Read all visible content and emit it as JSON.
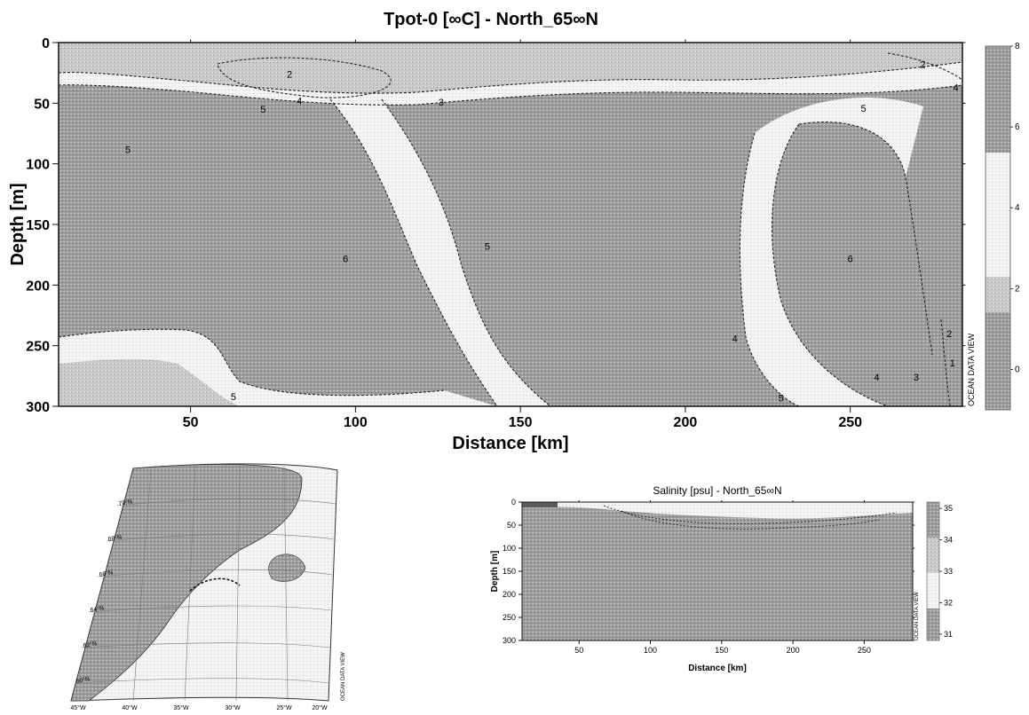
{
  "chart_data": [
    {
      "type": "heatmap",
      "title": "Tpot-0 [∞C] - North_65∞N",
      "xlabel": "Distance [km]",
      "ylabel": "Depth [m]",
      "xlim": [
        10,
        284
      ],
      "ylim": [
        0,
        300
      ],
      "x_ticks": [
        50,
        100,
        150,
        200,
        250
      ],
      "y_ticks": [
        0,
        50,
        100,
        150,
        200,
        250,
        300
      ],
      "y_inverted": true,
      "colorbar": {
        "ticks": [
          0,
          2,
          4,
          6,
          8
        ],
        "range": [
          -1,
          8
        ]
      },
      "contour_labels": [
        {
          "text": "5",
          "x": 31,
          "y": 88
        },
        {
          "text": "2",
          "x": 80,
          "y": 26
        },
        {
          "text": "5",
          "x": 72,
          "y": 55
        },
        {
          "text": "4",
          "x": 83,
          "y": 48
        },
        {
          "text": "3",
          "x": 126,
          "y": 49
        },
        {
          "text": "6",
          "x": 97,
          "y": 178
        },
        {
          "text": "5",
          "x": 140,
          "y": 168
        },
        {
          "text": "5",
          "x": 63,
          "y": 292
        },
        {
          "text": "4",
          "x": 215,
          "y": 244
        },
        {
          "text": "2",
          "x": 272,
          "y": 18
        },
        {
          "text": "4",
          "x": 282,
          "y": 37
        },
        {
          "text": "5",
          "x": 254,
          "y": 54
        },
        {
          "text": "6",
          "x": 250,
          "y": 178
        },
        {
          "text": "5",
          "x": 229,
          "y": 293
        },
        {
          "text": "4",
          "x": 258,
          "y": 276
        },
        {
          "text": "3",
          "x": 270,
          "y": 276
        },
        {
          "text": "2",
          "x": 280,
          "y": 240
        },
        {
          "text": "1",
          "x": 281,
          "y": 264
        }
      ],
      "watermark": "OCEAN DATA VIEW"
    },
    {
      "type": "heatmap",
      "title": "Salinity [psu] - North_65∞N",
      "xlabel": "Distance [km]",
      "ylabel": "Depth [m]",
      "xlim": [
        10,
        284
      ],
      "ylim": [
        0,
        300
      ],
      "x_ticks": [
        50,
        100,
        150,
        200,
        250
      ],
      "y_ticks": [
        0,
        50,
        100,
        150,
        200,
        250,
        300
      ],
      "y_inverted": true,
      "colorbar": {
        "ticks": [
          31,
          32,
          33,
          34,
          35
        ],
        "range": [
          30.8,
          35.2
        ]
      },
      "watermark": "OCEAN DATA VIEW"
    },
    {
      "type": "map",
      "lat_labels": [
        "70°N",
        "68°N",
        "66°N",
        "64°N",
        "62°N",
        "60°N"
      ],
      "lon_labels": [
        "45°W",
        "40°W",
        "35°W",
        "30°W",
        "25°W",
        "20°W"
      ],
      "watermark": "OCEAN DATA VIEW"
    }
  ],
  "colors": {
    "field": "#9a9a9a",
    "light": "#f2f2f2",
    "ink": "#111111"
  }
}
